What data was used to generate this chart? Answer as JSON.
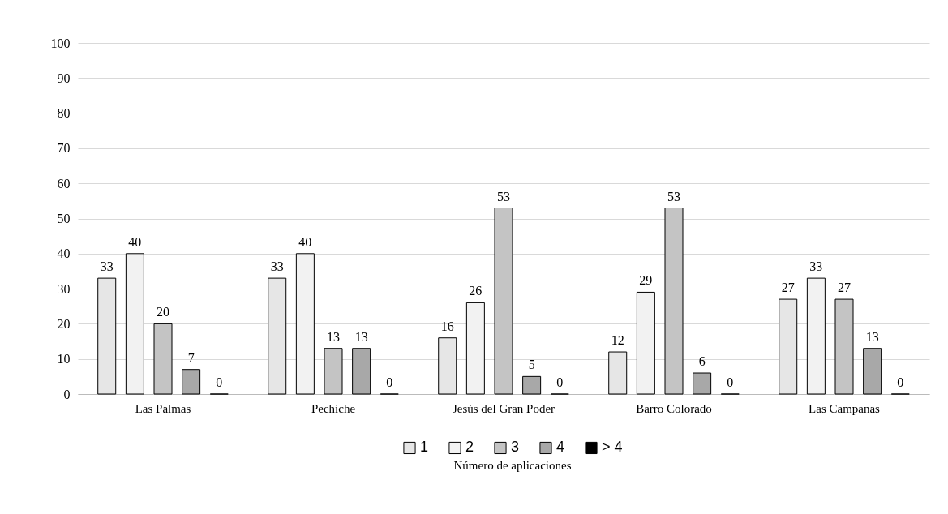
{
  "chart_data": {
    "type": "bar",
    "categories": [
      "Las Palmas",
      "Pechiche",
      "Jesús del Gran Poder",
      "Barro Colorado",
      "Las Campanas"
    ],
    "series": [
      {
        "name": "1",
        "color": "#e6e6e6",
        "values": [
          33,
          33,
          16,
          12,
          27
        ]
      },
      {
        "name": "2",
        "color": "#f2f2f2",
        "values": [
          40,
          40,
          26,
          29,
          33
        ]
      },
      {
        "name": "3",
        "color": "#c4c4c4",
        "values": [
          20,
          13,
          53,
          53,
          27
        ]
      },
      {
        "name": "4",
        "color": "#a8a8a8",
        "values": [
          7,
          13,
          5,
          6,
          13
        ]
      },
      {
        "name": "> 4",
        "color": "#000000",
        "values": [
          0,
          0,
          0,
          0,
          0
        ]
      }
    ],
    "ylim": [
      0,
      100
    ],
    "yticks": [
      0,
      10,
      20,
      30,
      40,
      50,
      60,
      70,
      80,
      90,
      100
    ],
    "grid": "y",
    "legend": "bottom",
    "legend_title": "Número de aplicaciones",
    "data_labels": true
  }
}
